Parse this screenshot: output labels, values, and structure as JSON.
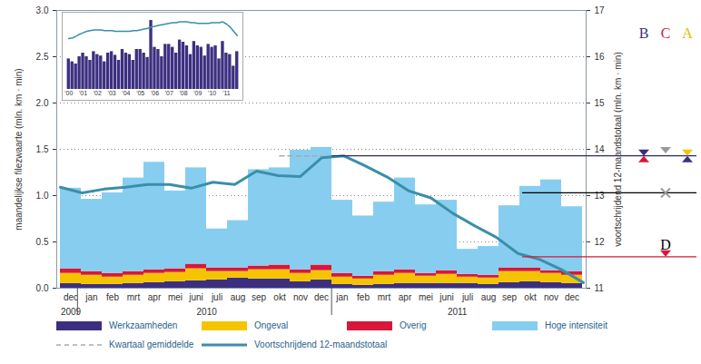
{
  "chart_data": {
    "type": "bar",
    "stacked": true,
    "categories": [
      "dec",
      "jan",
      "feb",
      "mrt",
      "apr",
      "mei",
      "juni",
      "juli",
      "aug",
      "sep",
      "okt",
      "nov",
      "dec",
      "jan",
      "feb",
      "mrt",
      "apr",
      "mei",
      "juni",
      "juli",
      "aug",
      "sep",
      "okt",
      "nov",
      "dec"
    ],
    "year_groups": [
      {
        "label": "2009",
        "count": 1
      },
      {
        "label": "2010",
        "count": 12
      },
      {
        "label": "2011",
        "count": 12
      }
    ],
    "ylabel": "maandelijkse filezwaarte (mln. km · min)",
    "y2label": "voortschrijdend 12-maandstotaal (mln. km · min)",
    "ylim": [
      0,
      3
    ],
    "yticks": [
      {
        "value": 0,
        "label": "0.0"
      },
      0.5,
      {
        "value": 1,
        "label": "1.0"
      },
      1.5,
      {
        "value": 2,
        "label": "2.0"
      },
      2.5,
      {
        "value": 3,
        "label": "3.0"
      }
    ],
    "y2lim": [
      11,
      17
    ],
    "y2ticks": [
      11,
      12,
      13,
      14,
      15,
      16,
      17
    ],
    "grid": true,
    "legend": "bottom",
    "series": [
      {
        "name": "Werkzaamheden",
        "type": "bar",
        "color": "#3d2f80",
        "values": [
          0.05,
          0.04,
          0.04,
          0.05,
          0.06,
          0.07,
          0.08,
          0.09,
          0.11,
          0.1,
          0.1,
          0.07,
          0.09,
          0.04,
          0.03,
          0.04,
          0.05,
          0.05,
          0.05,
          0.05,
          0.04,
          0.06,
          0.07,
          0.06,
          0.05
        ]
      },
      {
        "name": "Ongeval",
        "type": "bar",
        "color": "#f5c400",
        "values": [
          0.11,
          0.1,
          0.08,
          0.09,
          0.1,
          0.1,
          0.13,
          0.09,
          0.07,
          0.1,
          0.1,
          0.09,
          0.1,
          0.08,
          0.07,
          0.1,
          0.11,
          0.08,
          0.1,
          0.07,
          0.07,
          0.12,
          0.11,
          0.1,
          0.09
        ]
      },
      {
        "name": "Overig",
        "type": "bar",
        "color": "#d8173a",
        "values": [
          0.05,
          0.04,
          0.04,
          0.04,
          0.04,
          0.04,
          0.05,
          0.04,
          0.04,
          0.04,
          0.05,
          0.04,
          0.06,
          0.04,
          0.03,
          0.04,
          0.04,
          0.03,
          0.04,
          0.03,
          0.03,
          0.04,
          0.04,
          0.03,
          0.04
        ]
      },
      {
        "name": "Hoge intensiteit",
        "type": "bar",
        "color": "#87cdf0",
        "values": [
          0.87,
          0.78,
          0.87,
          1.01,
          1.16,
          0.84,
          1.04,
          0.42,
          0.51,
          1.04,
          1.05,
          1.29,
          1.27,
          0.79,
          0.65,
          0.75,
          0.99,
          0.74,
          0.76,
          0.27,
          0.31,
          0.67,
          0.88,
          0.98,
          0.7
        ]
      },
      {
        "name": "Kwartaal gemiddelde",
        "type": "line",
        "line_style": "dashed",
        "color": "#aaaaaa",
        "values": [
          null,
          null,
          null,
          null,
          null,
          null,
          null,
          null,
          null,
          null,
          1.43,
          1.43,
          1.43,
          null,
          null,
          null,
          null,
          null,
          null,
          null,
          null,
          null,
          null,
          null,
          null
        ]
      },
      {
        "name": "Voortschrijdend 12-maandstotaal",
        "type": "line",
        "axis": "y2",
        "color": "#3a8fa8",
        "values": [
          13.18,
          13.06,
          13.14,
          13.18,
          13.24,
          13.24,
          13.16,
          13.29,
          13.24,
          13.53,
          13.43,
          13.41,
          13.82,
          13.86,
          13.64,
          13.4,
          13.1,
          12.95,
          12.62,
          12.35,
          12.1,
          11.75,
          11.62,
          11.4,
          11.12
        ]
      }
    ],
    "targets": [
      {
        "value": 13.85,
        "start": 13,
        "color": "#2b2b6b"
      },
      {
        "value": 13.05,
        "start": 22,
        "color": "#000000"
      },
      {
        "value": 11.67,
        "start": 22,
        "color": "#d8173a"
      }
    ],
    "annotations": [
      {
        "text": "B",
        "color": "#3d2f80"
      },
      {
        "text": "C",
        "color": "#d8173a"
      },
      {
        "text": "A",
        "color": "#e8b800"
      },
      {
        "text": "D",
        "color": "#000000",
        "value": 11.95,
        "column": "C"
      }
    ],
    "markers": [
      {
        "column": "B",
        "value": 13.85,
        "marker": "hourglass",
        "colors": [
          "#3d2f80",
          "#d8173a"
        ]
      },
      {
        "column": "C",
        "value": 13.9,
        "marker": "triangle",
        "colors": [
          "#9a9a9a"
        ]
      },
      {
        "column": "A",
        "value": 13.85,
        "marker": "hourglass",
        "colors": [
          "#f5c400",
          "#3d2f80"
        ]
      },
      {
        "column": "C",
        "value": 13.05,
        "marker": "cross",
        "colors": [
          "#9a9a9a"
        ]
      },
      {
        "column": "C",
        "value": 11.67,
        "marker": "triangle",
        "colors": [
          "#d8173a"
        ]
      }
    ],
    "inset": {
      "type": "bar",
      "tick_labels": "x",
      "ylim": [
        0,
        1
      ],
      "categories": [
        "'00",
        null,
        null,
        null,
        "'01",
        null,
        null,
        null,
        "'02",
        null,
        null,
        null,
        "'03",
        null,
        null,
        null,
        "'04",
        null,
        null,
        null,
        "'05",
        null,
        null,
        null,
        "'06",
        null,
        null,
        null,
        "'07",
        null,
        null,
        null,
        "'08",
        null,
        null,
        null,
        "'09",
        null,
        null,
        null,
        "'10",
        null,
        null,
        null,
        "'11",
        null,
        null,
        null
      ],
      "series": [
        {
          "type": "bar",
          "color": "#3d2f80",
          "values": [
            0.42,
            0.38,
            0.35,
            0.45,
            0.5,
            0.45,
            0.4,
            0.52,
            0.48,
            0.46,
            0.38,
            0.5,
            0.52,
            0.47,
            0.4,
            0.55,
            0.5,
            0.48,
            0.4,
            0.55,
            0.55,
            0.5,
            0.44,
            0.95,
            0.58,
            0.55,
            0.45,
            0.62,
            0.62,
            0.58,
            0.5,
            0.68,
            0.65,
            0.6,
            0.48,
            0.66,
            0.6,
            0.58,
            0.46,
            0.62,
            0.58,
            0.6,
            0.42,
            0.66,
            0.5,
            0.48,
            0.32,
            0.52
          ]
        },
        {
          "type": "line",
          "color": "#3a8fa8",
          "values": [
            0.7,
            0.71,
            0.73,
            0.76,
            0.78,
            0.8,
            0.81,
            0.82,
            0.82,
            0.82,
            0.81,
            0.81,
            0.81,
            0.8,
            0.8,
            0.8,
            0.8,
            0.8,
            0.81,
            0.81,
            0.82,
            0.83,
            0.84,
            0.86,
            0.87,
            0.88,
            0.89,
            0.9,
            0.91,
            0.92,
            0.92,
            0.93,
            0.93,
            0.93,
            0.92,
            0.92,
            0.91,
            0.91,
            0.91,
            0.91,
            0.92,
            0.92,
            0.92,
            0.93,
            0.9,
            0.86,
            0.8,
            0.74
          ]
        }
      ]
    }
  }
}
